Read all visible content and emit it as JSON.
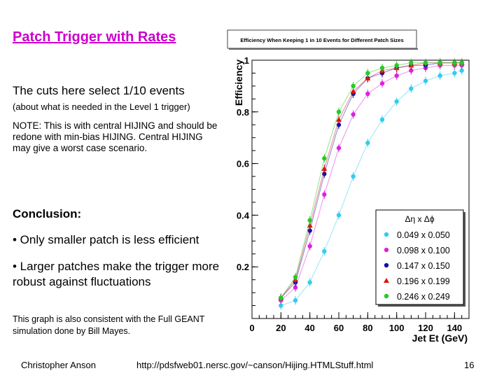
{
  "slide": {
    "title": "Patch Trigger with Rates",
    "cuts_line": "The cuts here select 1/10 events",
    "cuts_subline": "(about what is needed in the Level 1 trigger)",
    "note": "NOTE:  This is with central HIJING and should be redone with min-bias HIJING.  Central HIJING may give a worst case scenario.",
    "conclusion_heading": "Conclusion:",
    "bullet_1": "• Only smaller patch is less efficient",
    "bullet_2": "• Larger patches make the trigger more robust against fluctuations",
    "consistency_note": "This graph is also consistent with the Full GEANT simulation done by Bill Mayes.",
    "author": "Christopher Anson",
    "url": "http://pdsfweb01.nersc.gov/~canson/Hijing.HTMLStuff.html",
    "page_number": "16"
  },
  "chart_data": {
    "type": "scatter",
    "title": "Efficiency When Keeping 1 in 10 Events for Different Patch Sizes",
    "xlabel": "Jet Et (GeV)",
    "ylabel": "Efficiency",
    "xlim": [
      0,
      150
    ],
    "ylim": [
      0,
      1
    ],
    "x_ticks": [
      0,
      20,
      40,
      60,
      80,
      100,
      120,
      140
    ],
    "y_ticks": [
      0.2,
      0.4,
      0.6,
      0.8,
      1
    ],
    "x_tick_labels": [
      "0",
      "20",
      "40",
      "60",
      "80",
      "100",
      "120",
      "140"
    ],
    "y_tick_labels": [
      "0.2",
      "0.4",
      "0.6",
      "0.8",
      "1"
    ],
    "legend_title": "Δη x Δϕ",
    "legend_position": "bottom-right",
    "series": [
      {
        "name": "0.049 x 0.050",
        "color": "#33ccee",
        "marker": "circle",
        "x": [
          20,
          30,
          40,
          50,
          60,
          70,
          80,
          90,
          100,
          110,
          120,
          130,
          140,
          145
        ],
        "y": [
          0.05,
          0.07,
          0.14,
          0.26,
          0.4,
          0.55,
          0.68,
          0.77,
          0.84,
          0.89,
          0.92,
          0.94,
          0.95,
          0.96
        ]
      },
      {
        "name": "0.098 x 0.100",
        "color": "#dd22dd",
        "marker": "circle",
        "x": [
          20,
          30,
          40,
          50,
          60,
          70,
          80,
          90,
          100,
          110,
          120,
          130,
          140,
          145
        ],
        "y": [
          0.07,
          0.12,
          0.28,
          0.48,
          0.66,
          0.79,
          0.87,
          0.91,
          0.94,
          0.96,
          0.97,
          0.98,
          0.98,
          0.98
        ]
      },
      {
        "name": "0.147 x 0.150",
        "color": "#1111aa",
        "marker": "circle",
        "x": [
          20,
          30,
          40,
          50,
          60,
          70,
          80,
          90,
          100,
          110,
          120,
          130,
          140,
          145
        ],
        "y": [
          0.08,
          0.14,
          0.34,
          0.56,
          0.75,
          0.87,
          0.93,
          0.95,
          0.97,
          0.98,
          0.98,
          0.99,
          0.99,
          0.99
        ]
      },
      {
        "name": "0.196 x 0.199",
        "color": "#dd1111",
        "marker": "triangle",
        "x": [
          20,
          30,
          40,
          50,
          60,
          70,
          80,
          90,
          100,
          110,
          120,
          130,
          140,
          145
        ],
        "y": [
          0.08,
          0.15,
          0.36,
          0.58,
          0.77,
          0.88,
          0.93,
          0.96,
          0.97,
          0.98,
          0.99,
          0.99,
          0.99,
          0.99
        ]
      },
      {
        "name": "0.246 x 0.249",
        "color": "#22cc22",
        "marker": "circle",
        "x": [
          20,
          30,
          40,
          50,
          60,
          70,
          80,
          90,
          100,
          110,
          120,
          130,
          140,
          145
        ],
        "y": [
          0.08,
          0.16,
          0.38,
          0.62,
          0.8,
          0.9,
          0.95,
          0.97,
          0.98,
          0.99,
          0.99,
          0.99,
          0.99,
          0.99
        ]
      }
    ]
  }
}
